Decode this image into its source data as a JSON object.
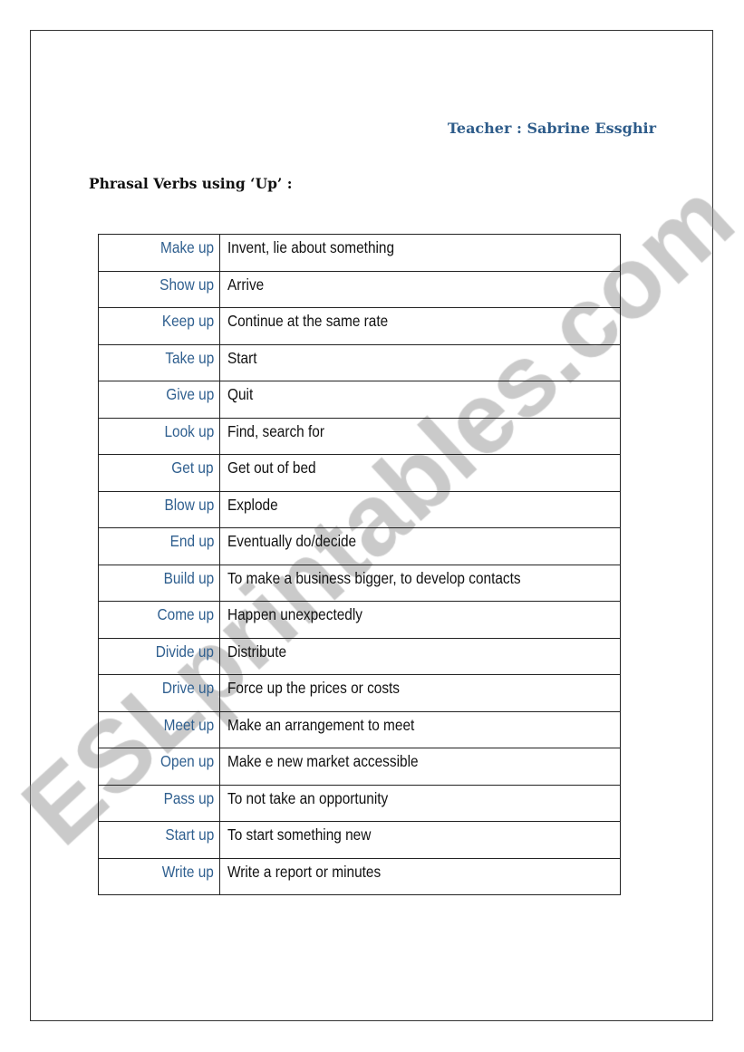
{
  "header": {
    "teacher": "Teacher : Sabrine Essghir"
  },
  "title": "Phrasal Verbs using ‘Up’ :",
  "colors": {
    "verb": "#2f5f8f",
    "teacher": "#2e5c8a",
    "watermark": "#969696"
  },
  "watermark": "ESLprintables.com",
  "rows": [
    {
      "verb": "Make up",
      "definition": "Invent, lie about something"
    },
    {
      "verb": "Show up",
      "definition": "Arrive"
    },
    {
      "verb": "Keep up",
      "definition": "Continue at the same rate"
    },
    {
      "verb": "Take up",
      "definition": "Start"
    },
    {
      "verb": "Give up",
      "definition": "Quit"
    },
    {
      "verb": "Look up",
      "definition": "Find, search for"
    },
    {
      "verb": "Get up",
      "definition": "Get out of bed"
    },
    {
      "verb": "Blow up",
      "definition": "Explode"
    },
    {
      "verb": "End up",
      "definition": "Eventually do/decide"
    },
    {
      "verb": "Build up",
      "definition": "To make a business bigger, to develop contacts"
    },
    {
      "verb": "Come up",
      "definition": "Happen unexpectedly"
    },
    {
      "verb": "Divide up",
      "definition": "Distribute"
    },
    {
      "verb": "Drive up",
      "definition": "Force up the prices or costs"
    },
    {
      "verb": "Meet up",
      "definition": "Make an arrangement to meet"
    },
    {
      "verb": "Open up",
      "definition": "Make e new market accessible"
    },
    {
      "verb": "Pass up",
      "definition": "To not take an opportunity"
    },
    {
      "verb": "Start up",
      "definition": "To start something new"
    },
    {
      "verb": "Write up",
      "definition": "Write a report or minutes"
    }
  ]
}
